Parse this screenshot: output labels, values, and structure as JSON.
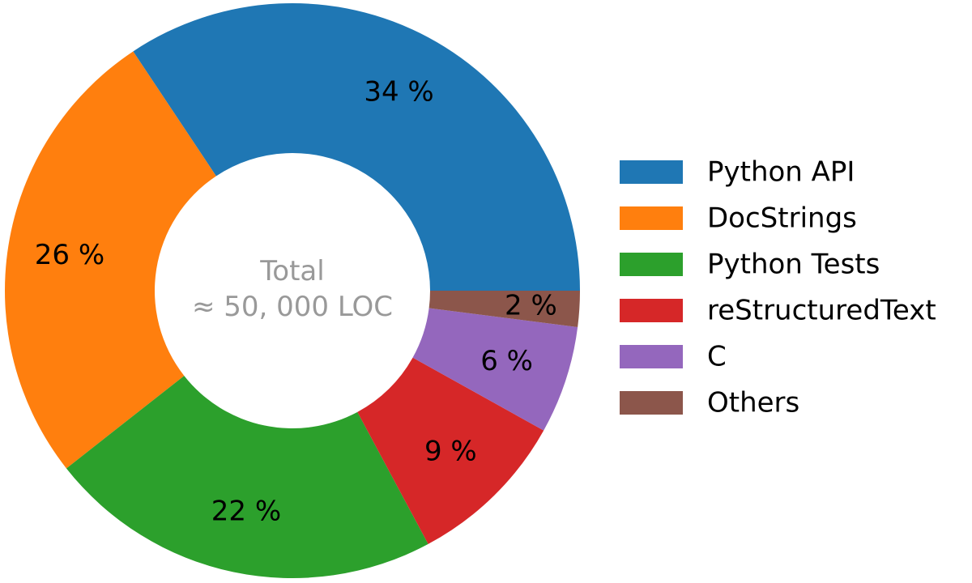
{
  "chart_data": {
    "type": "pie",
    "variant": "donut",
    "center_label": [
      "Total",
      "≈ 50, 000 LOC"
    ],
    "slices": [
      {
        "label": "Python API",
        "value": 34,
        "display": "34 %",
        "color": "#1f77b4"
      },
      {
        "label": "DocStrings",
        "value": 26,
        "display": "26 %",
        "color": "#ff7f0e"
      },
      {
        "label": "Python Tests",
        "value": 22,
        "display": "22 %",
        "color": "#2ca02c"
      },
      {
        "label": "reStructuredText",
        "value": 9,
        "display": "9 %",
        "color": "#d62728"
      },
      {
        "label": "C",
        "value": 6,
        "display": "6 %",
        "color": "#9467bd"
      },
      {
        "label": "Others",
        "value": 2,
        "display": "2 %",
        "color": "#8c564b"
      }
    ],
    "start_direction": "east",
    "direction": "counterclockwise",
    "legend_position": "right"
  }
}
